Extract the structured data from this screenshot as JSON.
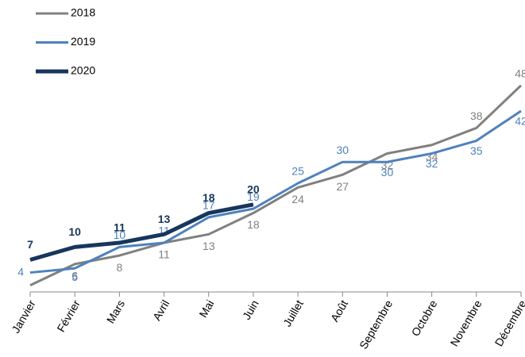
{
  "chart_data": {
    "type": "line",
    "categories": [
      "Janvier",
      "Février",
      "Mars",
      "Avril",
      "Mai",
      "Juin",
      "Juillet",
      "Août",
      "Septembre",
      "Octobre",
      "Novembre",
      "Décembre"
    ],
    "series": [
      {
        "name": "2018",
        "color": "#808080",
        "values": [
          1,
          6,
          8,
          11,
          13,
          18,
          24,
          27,
          32,
          34,
          38,
          48
        ],
        "value_labels": [
          null,
          "6",
          "8",
          "11",
          "13",
          "18",
          "24",
          "27",
          "32",
          "34",
          "38",
          "48"
        ]
      },
      {
        "name": "2019",
        "color": "#4f81bd",
        "values": [
          4,
          5,
          10,
          11,
          17,
          19,
          25,
          30,
          30,
          32,
          35,
          42
        ]
      },
      {
        "name": "2020",
        "color": "#17365d",
        "values": [
          7,
          10,
          11,
          13,
          18,
          20,
          null,
          null,
          null,
          null,
          null,
          null
        ]
      }
    ],
    "ylim": [
      0,
      50
    ],
    "legend": "top-left"
  }
}
